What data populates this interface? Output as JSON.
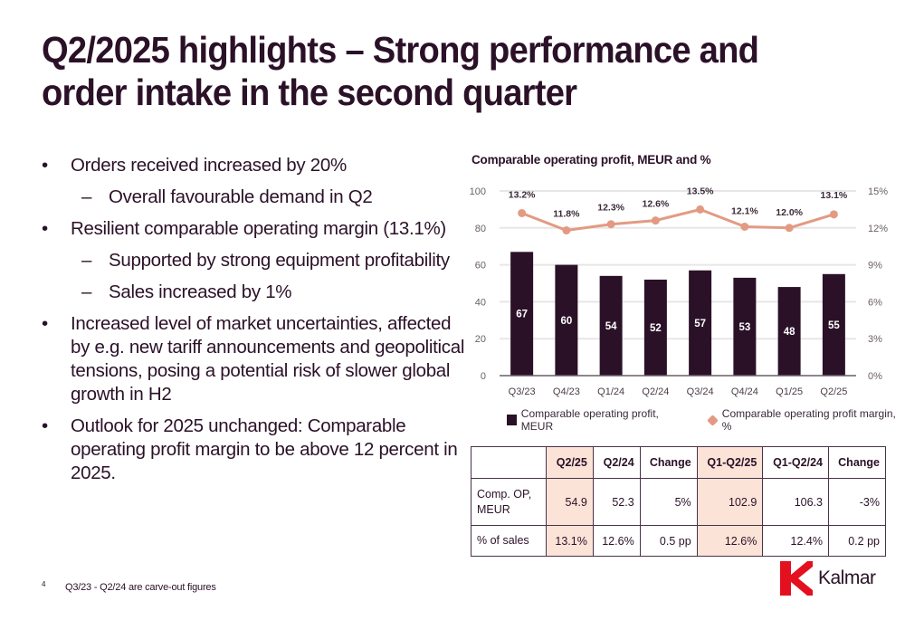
{
  "slide": {
    "title_line1": "Q2/2025 highlights – Strong performance and",
    "title_line2": "order intake in the second quarter",
    "page_number": "4",
    "footnote": "Q3/23 - Q2/24 are carve-out figures",
    "logo_text": "Kalmar",
    "colors": {
      "brand_dark": "#2b1128",
      "accent_line": "#e39a83",
      "highlight_cell": "#fbe3d7",
      "logo_red": "#e4101f"
    }
  },
  "bullets": [
    {
      "level": 1,
      "marker": "•",
      "text": "Orders received increased by 20%"
    },
    {
      "level": 2,
      "marker": "–",
      "text": "Overall favourable demand in Q2"
    },
    {
      "level": 1,
      "marker": "•",
      "text": "Resilient comparable operating margin (13.1%)"
    },
    {
      "level": 2,
      "marker": "–",
      "text": "Supported by strong equipment profitability"
    },
    {
      "level": 2,
      "marker": "–",
      "text": "Sales increased by 1%"
    },
    {
      "level": 1,
      "marker": "•",
      "text": "Increased level of market uncertainties, affected by e.g. new  tariff announcements and geopolitical tensions, posing a potential risk of slower global growth in H2"
    },
    {
      "level": 1,
      "marker": "•",
      "text": "Outlook for 2025 unchanged: Comparable operating profit margin to be above 12 percent in 2025."
    }
  ],
  "chart_data": {
    "type": "bar",
    "title": "Comparable operating profit, MEUR and %",
    "categories": [
      "Q3/23",
      "Q4/23",
      "Q1/24",
      "Q2/24",
      "Q3/24",
      "Q4/24",
      "Q1/25",
      "Q2/25"
    ],
    "series": [
      {
        "name": "Comparable operating profit, MEUR",
        "type": "bar",
        "axis": "left",
        "color": "#2b1128",
        "values": [
          67,
          60,
          54,
          52,
          57,
          53,
          48,
          55
        ],
        "labels": [
          "67",
          "60",
          "54",
          "52",
          "57",
          "53",
          "48",
          "55"
        ]
      },
      {
        "name": "Comparable operating profit margin, %",
        "type": "line",
        "axis": "right",
        "color": "#e39a83",
        "values": [
          13.2,
          11.8,
          12.3,
          12.6,
          13.5,
          12.1,
          12.0,
          13.1
        ],
        "labels": [
          "13.2%",
          "11.8%",
          "12.3%",
          "12.6%",
          "13.5%",
          "12.1%",
          "12.0%",
          "13.1%"
        ]
      }
    ],
    "left_axis": {
      "range": [
        0,
        100
      ],
      "ticks": [
        0,
        20,
        40,
        60,
        80,
        100
      ],
      "tick_labels": [
        "0",
        "20",
        "40",
        "60",
        "80",
        "100"
      ]
    },
    "right_axis": {
      "range": [
        0,
        15
      ],
      "ticks": [
        0,
        3,
        6,
        9,
        12,
        15
      ],
      "tick_labels": [
        "0%",
        "3%",
        "6%",
        "9%",
        "12%",
        "15%"
      ]
    },
    "grid": true,
    "legend_position": "bottom"
  },
  "table": {
    "headers": [
      "",
      "Q2/25",
      "Q2/24",
      "Change",
      "Q1-Q2/25",
      "Q1-Q2/24",
      "Change"
    ],
    "highlight_columns": [
      1,
      4
    ],
    "rows": [
      {
        "label": "Comp. OP, MEUR",
        "cells": [
          "54.9",
          "52.3",
          "5%",
          "102.9",
          "106.3",
          "-3%"
        ]
      },
      {
        "label": "% of sales",
        "cells": [
          "13.1%",
          "12.6%",
          "0.5 pp",
          "12.6%",
          "12.4%",
          "0.2 pp"
        ]
      }
    ]
  }
}
